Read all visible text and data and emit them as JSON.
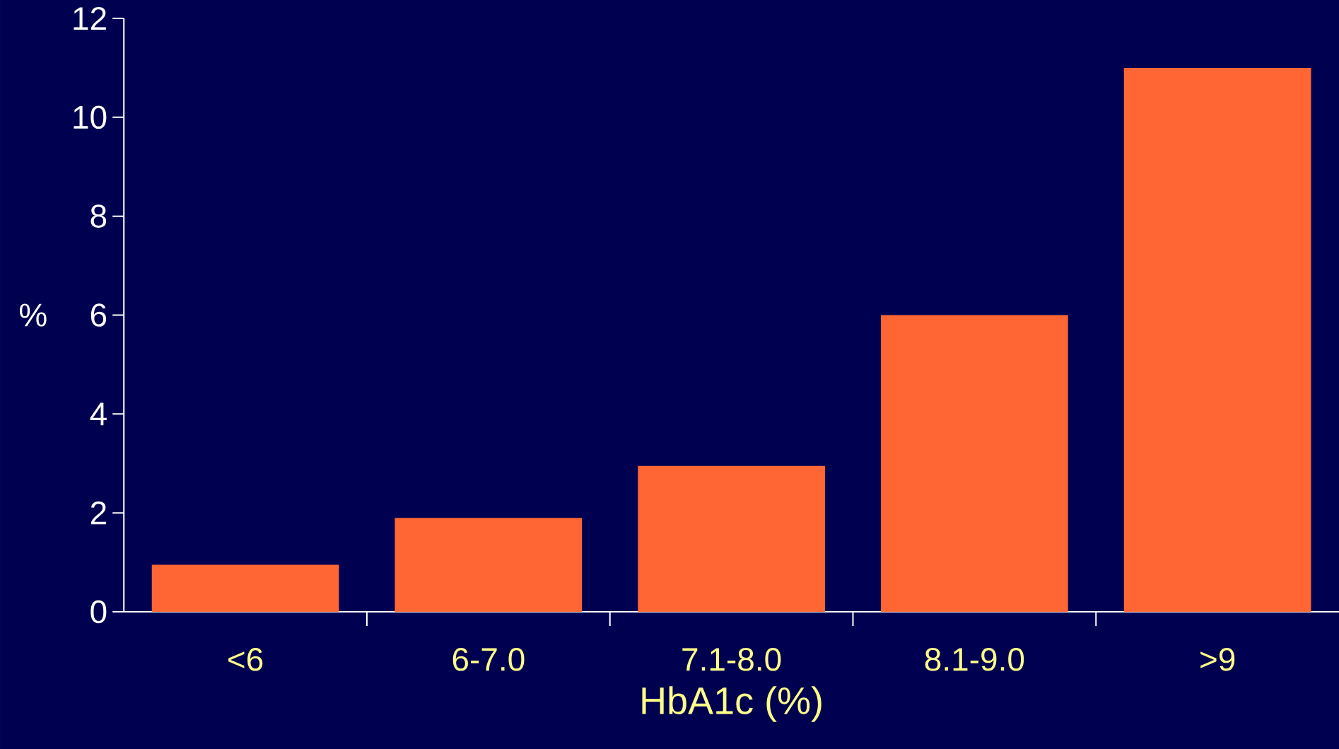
{
  "chart_data": {
    "type": "bar",
    "xlabel": "HbA1c (%)",
    "ylabel": "%",
    "categories": [
      "<6",
      "6-7.0",
      "7.1-8.0",
      "8.1-9.0",
      ">9"
    ],
    "values": [
      0.95,
      1.9,
      2.95,
      6,
      11
    ],
    "color": "#ff6633",
    "ylim": [
      0,
      12
    ],
    "yticks": [
      0,
      2,
      4,
      6,
      8,
      10,
      12
    ]
  }
}
